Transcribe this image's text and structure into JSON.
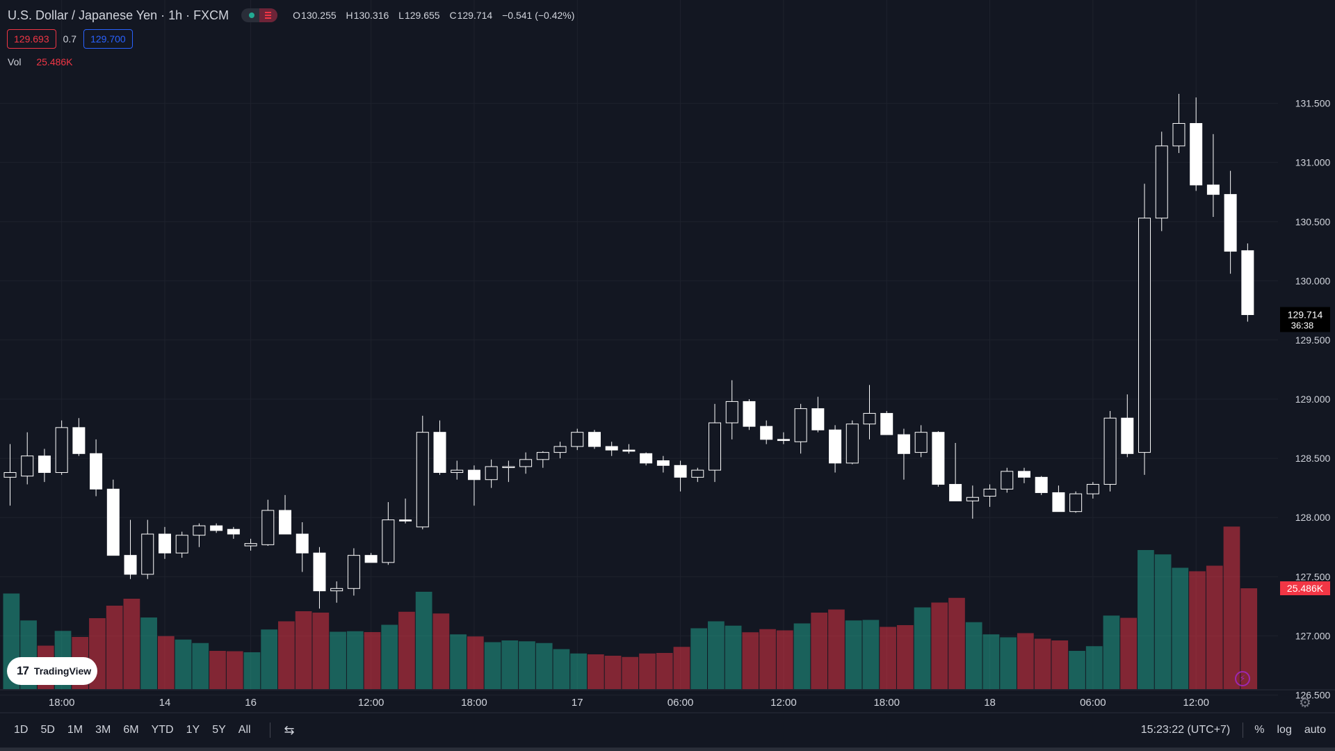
{
  "header": {
    "symbol": "U.S. Dollar / Japanese Yen · 1h · FXCM",
    "ohlc": {
      "o_label": "O",
      "o": "130.255",
      "h_label": "H",
      "h": "130.316",
      "l_label": "L",
      "l": "129.655",
      "c_label": "C",
      "c": "129.714",
      "change": "−0.541 (−0.42%)"
    },
    "bid": "129.693",
    "spread": "0.7",
    "ask": "129.700",
    "volume_label": "Vol",
    "volume_value": "25.486K"
  },
  "branding": {
    "logo_text": "TradingView",
    "logo_mark": "17"
  },
  "price_badge": {
    "price": "129.714",
    "countdown": "36:38"
  },
  "volume_badge": "25.486K",
  "bottom_bar": {
    "ranges": [
      "1D",
      "5D",
      "1M",
      "3M",
      "6M",
      "YTD",
      "1Y",
      "5Y",
      "All"
    ],
    "clock": "15:23:22 (UTC+7)",
    "percent": "%",
    "log": "log",
    "auto": "auto"
  },
  "colors": {
    "background": "#131722",
    "up_volume": "#22ab94",
    "down_volume": "#f23645",
    "candle": "#ffffff",
    "text": "#d1d4dc",
    "grid": "#1e222d"
  },
  "icons": {
    "settings": "gear-icon",
    "goto_date": "calendar-icon",
    "flash": "lightning-icon"
  },
  "chart_data": {
    "type": "candlestick",
    "price_axis": {
      "ticks": [
        "126.500",
        "127.000",
        "127.500",
        "128.000",
        "128.500",
        "129.000",
        "129.500",
        "130.000",
        "130.500",
        "131.000",
        "131.500"
      ],
      "range": [
        126.25,
        131.95
      ]
    },
    "time_axis": {
      "labels": [
        {
          "label": "18:00",
          "bar": 3
        },
        {
          "label": "14",
          "bar": 9
        },
        {
          "label": "16",
          "bar": 14
        },
        {
          "label": "12:00",
          "bar": 21
        },
        {
          "label": "18:00",
          "bar": 27
        },
        {
          "label": "17",
          "bar": 33
        },
        {
          "label": "06:00",
          "bar": 39
        },
        {
          "label": "12:00",
          "bar": 45
        },
        {
          "label": "18:00",
          "bar": 51
        },
        {
          "label": "18",
          "bar": 57
        },
        {
          "label": "06:00",
          "bar": 63
        },
        {
          "label": "12:00",
          "bar": 69
        }
      ]
    },
    "volume_scale_max": 1000,
    "candles": [
      {
        "o": 128.34,
        "h": 128.62,
        "l": 128.1,
        "c": 128.38,
        "v": 550
      },
      {
        "o": 128.35,
        "h": 128.72,
        "l": 128.28,
        "c": 128.52,
        "v": 395
      },
      {
        "o": 128.52,
        "h": 128.58,
        "l": 128.3,
        "c": 128.38,
        "v": 250
      },
      {
        "o": 128.38,
        "h": 128.82,
        "l": 128.36,
        "c": 128.76,
        "v": 335
      },
      {
        "o": 128.76,
        "h": 128.84,
        "l": 128.52,
        "c": 128.54,
        "v": 300
      },
      {
        "o": 128.54,
        "h": 128.66,
        "l": 128.18,
        "c": 128.24,
        "v": 408
      },
      {
        "o": 128.24,
        "h": 128.32,
        "l": 127.68,
        "c": 127.68,
        "v": 480
      },
      {
        "o": 127.68,
        "h": 127.98,
        "l": 127.48,
        "c": 127.52,
        "v": 520
      },
      {
        "o": 127.52,
        "h": 127.98,
        "l": 127.48,
        "c": 127.86,
        "v": 412
      },
      {
        "o": 127.86,
        "h": 127.92,
        "l": 127.65,
        "c": 127.7,
        "v": 305
      },
      {
        "o": 127.7,
        "h": 127.88,
        "l": 127.66,
        "c": 127.85,
        "v": 285
      },
      {
        "o": 127.85,
        "h": 127.95,
        "l": 127.75,
        "c": 127.93,
        "v": 265
      },
      {
        "o": 127.93,
        "h": 127.95,
        "l": 127.87,
        "c": 127.89,
        "v": 220
      },
      {
        "o": 127.9,
        "h": 127.92,
        "l": 127.82,
        "c": 127.86,
        "v": 218
      },
      {
        "o": 127.76,
        "h": 127.82,
        "l": 127.72,
        "c": 127.78,
        "v": 212
      },
      {
        "o": 127.77,
        "h": 128.15,
        "l": 127.76,
        "c": 128.06,
        "v": 343
      },
      {
        "o": 128.06,
        "h": 128.19,
        "l": 127.86,
        "c": 127.86,
        "v": 390
      },
      {
        "o": 127.86,
        "h": 127.96,
        "l": 127.54,
        "c": 127.7,
        "v": 448
      },
      {
        "o": 127.7,
        "h": 127.75,
        "l": 127.23,
        "c": 127.38,
        "v": 440
      },
      {
        "o": 127.38,
        "h": 127.46,
        "l": 127.28,
        "c": 127.4,
        "v": 330
      },
      {
        "o": 127.4,
        "h": 127.74,
        "l": 127.34,
        "c": 127.68,
        "v": 333
      },
      {
        "o": 127.68,
        "h": 127.7,
        "l": 127.62,
        "c": 127.62,
        "v": 328
      },
      {
        "o": 127.62,
        "h": 128.13,
        "l": 127.6,
        "c": 127.98,
        "v": 370
      },
      {
        "o": 127.98,
        "h": 128.16,
        "l": 127.95,
        "c": 127.97,
        "v": 445
      },
      {
        "o": 127.92,
        "h": 128.86,
        "l": 127.9,
        "c": 128.72,
        "v": 560
      },
      {
        "o": 128.72,
        "h": 128.82,
        "l": 128.36,
        "c": 128.38,
        "v": 435
      },
      {
        "o": 128.38,
        "h": 128.48,
        "l": 128.32,
        "c": 128.4,
        "v": 315
      },
      {
        "o": 128.4,
        "h": 128.44,
        "l": 128.1,
        "c": 128.32,
        "v": 303
      },
      {
        "o": 128.32,
        "h": 128.49,
        "l": 128.25,
        "c": 128.43,
        "v": 270
      },
      {
        "o": 128.43,
        "h": 128.48,
        "l": 128.3,
        "c": 128.43,
        "v": 280
      },
      {
        "o": 128.43,
        "h": 128.55,
        "l": 128.37,
        "c": 128.49,
        "v": 275
      },
      {
        "o": 128.49,
        "h": 128.56,
        "l": 128.42,
        "c": 128.55,
        "v": 265
      },
      {
        "o": 128.55,
        "h": 128.64,
        "l": 128.5,
        "c": 128.6,
        "v": 230
      },
      {
        "o": 128.6,
        "h": 128.75,
        "l": 128.57,
        "c": 128.72,
        "v": 205
      },
      {
        "o": 128.72,
        "h": 128.74,
        "l": 128.58,
        "c": 128.6,
        "v": 200
      },
      {
        "o": 128.6,
        "h": 128.64,
        "l": 128.52,
        "c": 128.57,
        "v": 192
      },
      {
        "o": 128.57,
        "h": 128.62,
        "l": 128.54,
        "c": 128.56,
        "v": 185
      },
      {
        "o": 128.54,
        "h": 128.55,
        "l": 128.44,
        "c": 128.46,
        "v": 205
      },
      {
        "o": 128.48,
        "h": 128.52,
        "l": 128.38,
        "c": 128.44,
        "v": 208
      },
      {
        "o": 128.44,
        "h": 128.48,
        "l": 128.22,
        "c": 128.34,
        "v": 243
      },
      {
        "o": 128.34,
        "h": 128.42,
        "l": 128.3,
        "c": 128.4,
        "v": 350
      },
      {
        "o": 128.4,
        "h": 128.96,
        "l": 128.3,
        "c": 128.8,
        "v": 390
      },
      {
        "o": 128.8,
        "h": 129.16,
        "l": 128.66,
        "c": 128.98,
        "v": 365
      },
      {
        "o": 128.98,
        "h": 129.0,
        "l": 128.74,
        "c": 128.77,
        "v": 327
      },
      {
        "o": 128.77,
        "h": 128.82,
        "l": 128.62,
        "c": 128.66,
        "v": 345
      },
      {
        "o": 128.66,
        "h": 128.72,
        "l": 128.62,
        "c": 128.65,
        "v": 338
      },
      {
        "o": 128.64,
        "h": 128.96,
        "l": 128.54,
        "c": 128.92,
        "v": 378
      },
      {
        "o": 128.92,
        "h": 129.02,
        "l": 128.72,
        "c": 128.74,
        "v": 440
      },
      {
        "o": 128.74,
        "h": 128.78,
        "l": 128.38,
        "c": 128.46,
        "v": 458
      },
      {
        "o": 128.46,
        "h": 128.82,
        "l": 128.45,
        "c": 128.79,
        "v": 395
      },
      {
        "o": 128.79,
        "h": 129.12,
        "l": 128.66,
        "c": 128.88,
        "v": 398
      },
      {
        "o": 128.88,
        "h": 128.9,
        "l": 128.7,
        "c": 128.7,
        "v": 358
      },
      {
        "o": 128.7,
        "h": 128.75,
        "l": 128.32,
        "c": 128.54,
        "v": 368
      },
      {
        "o": 128.55,
        "h": 128.78,
        "l": 128.51,
        "c": 128.72,
        "v": 470
      },
      {
        "o": 128.72,
        "h": 128.73,
        "l": 128.26,
        "c": 128.28,
        "v": 498
      },
      {
        "o": 128.28,
        "h": 128.63,
        "l": 128.14,
        "c": 128.14,
        "v": 525
      },
      {
        "o": 128.14,
        "h": 128.27,
        "l": 127.99,
        "c": 128.17,
        "v": 385
      },
      {
        "o": 128.18,
        "h": 128.28,
        "l": 128.09,
        "c": 128.24,
        "v": 315
      },
      {
        "o": 128.24,
        "h": 128.42,
        "l": 128.21,
        "c": 128.39,
        "v": 298
      },
      {
        "o": 128.39,
        "h": 128.42,
        "l": 128.29,
        "c": 128.34,
        "v": 322
      },
      {
        "o": 128.34,
        "h": 128.35,
        "l": 128.19,
        "c": 128.21,
        "v": 290
      },
      {
        "o": 128.21,
        "h": 128.27,
        "l": 128.05,
        "c": 128.05,
        "v": 280
      },
      {
        "o": 128.05,
        "h": 128.22,
        "l": 128.04,
        "c": 128.2,
        "v": 220
      },
      {
        "o": 128.2,
        "h": 128.3,
        "l": 128.16,
        "c": 128.28,
        "v": 247
      },
      {
        "o": 128.28,
        "h": 128.9,
        "l": 128.22,
        "c": 128.84,
        "v": 423
      },
      {
        "o": 128.84,
        "h": 129.04,
        "l": 128.51,
        "c": 128.54,
        "v": 410
      },
      {
        "o": 128.55,
        "h": 130.82,
        "l": 128.36,
        "c": 130.53,
        "v": 800
      },
      {
        "o": 130.53,
        "h": 131.26,
        "l": 130.42,
        "c": 131.14,
        "v": 775
      },
      {
        "o": 131.14,
        "h": 131.58,
        "l": 131.08,
        "c": 131.33,
        "v": 698
      },
      {
        "o": 131.33,
        "h": 131.55,
        "l": 130.76,
        "c": 130.81,
        "v": 678
      },
      {
        "o": 130.81,
        "h": 131.24,
        "l": 130.54,
        "c": 130.73,
        "v": 710
      },
      {
        "o": 130.73,
        "h": 130.93,
        "l": 130.06,
        "c": 130.25,
        "v": 935
      },
      {
        "o": 130.255,
        "h": 130.316,
        "l": 129.655,
        "c": 129.714,
        "v": 580
      }
    ]
  }
}
